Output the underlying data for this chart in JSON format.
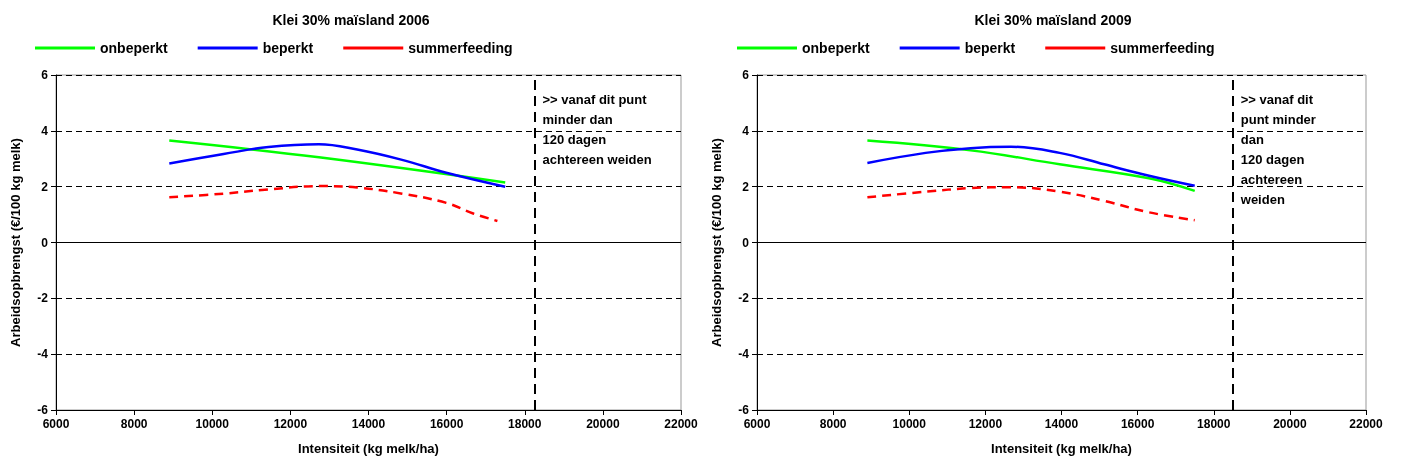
{
  "chart_data": [
    {
      "type": "line",
      "title": "Klei 30% maïsland 2006",
      "xlabel": "Intensiteit (kg melk/ha)",
      "ylabel": "Arbeidsopbrengst (€/100 kg melk)",
      "xlim": [
        6000,
        22000
      ],
      "xticks": [
        6000,
        8000,
        10000,
        12000,
        14000,
        16000,
        18000,
        20000,
        22000
      ],
      "ylim": [
        -6,
        6
      ],
      "yticks": [
        -6,
        -4,
        -2,
        0,
        2,
        4,
        6
      ],
      "grid": "y",
      "legend": "top",
      "series": [
        {
          "name": "onbeperkt",
          "color": "#00ff00",
          "x": [
            8900,
            12730,
            17500
          ],
          "values": [
            3.65,
            3.05,
            2.15
          ]
        },
        {
          "name": "beperkt",
          "color": "#0000ff",
          "x": [
            8900,
            10290,
            11440,
            12730,
            13710,
            14860,
            15990,
            17500
          ],
          "values": [
            2.83,
            3.17,
            3.42,
            3.52,
            3.33,
            2.96,
            2.5,
            2.0
          ]
        },
        {
          "name": "summerfeeding",
          "color": "#ff0000",
          "line_style": "dashed",
          "x": [
            8900,
            10290,
            11440,
            12730,
            13710,
            14860,
            15990,
            16680,
            17300
          ],
          "values": [
            1.62,
            1.75,
            1.9,
            2.02,
            1.97,
            1.75,
            1.42,
            1.04,
            0.77
          ]
        }
      ],
      "ref_lines": [
        {
          "axis": "x",
          "value": 18250,
          "label": ">> vanaf dit punt\nminder dan\n120 dagen\nachtereen weiden",
          "color": "#000000",
          "line_style": "dashed"
        }
      ]
    },
    {
      "type": "line",
      "title": "Klei 30% maïsland 2009",
      "xlabel": "Intensiteit (kg melk/ha)",
      "ylabel": "Arbeidsopbrengst (€/100 kg melk)",
      "xlim": [
        6000,
        22000
      ],
      "xticks": [
        6000,
        8000,
        10000,
        12000,
        14000,
        16000,
        18000,
        20000,
        22000
      ],
      "ylim": [
        -6,
        6
      ],
      "yticks": [
        -6,
        -4,
        -2,
        0,
        2,
        4,
        6
      ],
      "grid": "y",
      "legend": "top",
      "series": [
        {
          "name": "onbeperkt",
          "color": "#00ff00",
          "x": [
            8900,
            11610,
            13950,
            16300,
            17500
          ],
          "values": [
            3.65,
            3.3,
            2.8,
            2.3,
            1.85
          ]
        },
        {
          "name": "beperkt",
          "color": "#0000ff",
          "x": [
            8900,
            10430,
            11610,
            12670,
            13950,
            15120,
            16300,
            17500
          ],
          "values": [
            2.85,
            3.21,
            3.38,
            3.43,
            3.21,
            2.8,
            2.39,
            2.03
          ]
        },
        {
          "name": "summerfeeding",
          "color": "#ff0000",
          "line_style": "dashed",
          "x": [
            8900,
            10430,
            11610,
            12670,
            13950,
            15120,
            16300,
            17500
          ],
          "values": [
            1.62,
            1.82,
            1.95,
            1.98,
            1.82,
            1.49,
            1.08,
            0.8
          ]
        }
      ],
      "ref_lines": [
        {
          "axis": "x",
          "value": 18500,
          "label": ">> vanaf dit\npunt minder\ndan\n120 dagen\nachtereen\nweiden",
          "color": "#000000",
          "line_style": "dashed"
        }
      ]
    }
  ]
}
